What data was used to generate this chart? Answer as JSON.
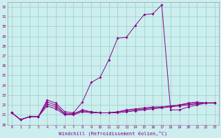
{
  "xlabel": "Windchill (Refroidissement éolien,°C)",
  "x": [
    0,
    1,
    2,
    3,
    4,
    5,
    6,
    7,
    8,
    9,
    10,
    11,
    12,
    13,
    14,
    15,
    16,
    17,
    18,
    19,
    20,
    21,
    22,
    23
  ],
  "line_peak": [
    21.2,
    20.5,
    20.8,
    20.8,
    22.5,
    22.2,
    21.3,
    21.2,
    22.3,
    24.3,
    24.8,
    26.6,
    28.8,
    28.9,
    30.1,
    31.2,
    31.3,
    32.2,
    21.5,
    21.5,
    21.8,
    22.0,
    22.2,
    22.2
  ],
  "line_a": [
    21.2,
    20.5,
    20.8,
    20.8,
    22.3,
    22.0,
    21.1,
    21.1,
    21.5,
    21.3,
    21.2,
    21.2,
    21.3,
    21.5,
    21.6,
    21.7,
    21.8,
    21.8,
    21.9,
    22.0,
    22.2,
    22.3,
    22.2,
    22.2
  ],
  "line_b": [
    21.2,
    20.5,
    20.8,
    20.8,
    22.1,
    21.8,
    21.1,
    21.1,
    21.4,
    21.3,
    21.2,
    21.2,
    21.3,
    21.4,
    21.5,
    21.6,
    21.7,
    21.8,
    21.9,
    22.0,
    22.1,
    22.2,
    22.2,
    22.2
  ],
  "line_c": [
    21.2,
    20.5,
    20.8,
    20.8,
    21.9,
    21.6,
    21.0,
    21.0,
    21.3,
    21.2,
    21.2,
    21.2,
    21.2,
    21.3,
    21.4,
    21.5,
    21.6,
    21.7,
    21.8,
    21.9,
    22.0,
    22.1,
    22.2,
    22.2
  ],
  "line_color": "#880088",
  "bg_color": "#cceeee",
  "grid_color": "#99cccc",
  "ylim": [
    20,
    32.5
  ],
  "yticks": [
    20,
    21,
    22,
    23,
    24,
    25,
    26,
    27,
    28,
    29,
    30,
    31,
    32
  ],
  "xticks": [
    0,
    1,
    2,
    3,
    4,
    5,
    6,
    7,
    8,
    9,
    10,
    11,
    12,
    13,
    14,
    15,
    16,
    17,
    18,
    19,
    20,
    21,
    22,
    23
  ]
}
